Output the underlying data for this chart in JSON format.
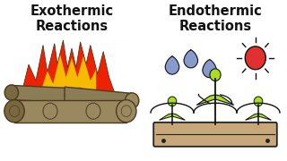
{
  "left_bg": "#E07060",
  "right_bg": "#4DC3E8",
  "left_title": "Exothermic\nReactions",
  "right_title": "Endothermic\nReactions",
  "title_color": "#111111",
  "title_fontsize": 10.5,
  "fig_width": 3.2,
  "fig_height": 1.8,
  "dpi": 100,
  "flame_red_color": "#EE2200",
  "flame_yellow_color": "#F5BB00",
  "log_color": "#8B7D55",
  "log_edge": "#4A3A20",
  "box_color": "#C8A878",
  "box_edge": "#222222",
  "plant_color": "#AADD22",
  "plant_edge": "#111111",
  "drop_color": "#8899CC",
  "sun_color": "#E03030",
  "sun_edge": "#111111"
}
